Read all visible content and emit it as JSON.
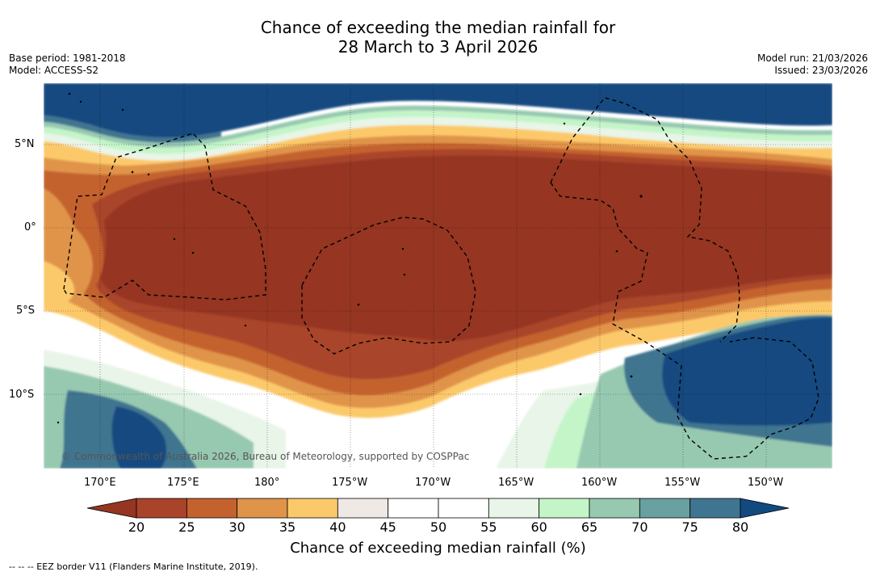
{
  "title": {
    "line1": "Chance of exceeding the median rainfall for",
    "line2": "28 March to 3 April 2026"
  },
  "meta": {
    "base_period": "Base period: 1981-2018",
    "model": "Model: ACCESS-S2",
    "model_run": "Model run: 21/03/2026",
    "issued": "Issued: 23/03/2026"
  },
  "map": {
    "region": "Equatorial central Pacific",
    "lon_range": [
      167,
      213
    ],
    "lat_range": [
      -14,
      8.5
    ],
    "copyright": "© Commonwealth of Australia 2026, Bureau of Meteorology, supported by COSPPac"
  },
  "axes": {
    "lat_labels": [
      "5°N",
      "0°",
      "5°S",
      "10°S"
    ],
    "lat_values": [
      5,
      0,
      -5,
      -10
    ],
    "lon_labels": [
      "170°E",
      "175°E",
      "180°",
      "175°W",
      "170°W",
      "165°W",
      "160°W",
      "155°W",
      "150°W"
    ],
    "lon_values": [
      170,
      175,
      180,
      185,
      190,
      195,
      200,
      205,
      210
    ]
  },
  "colorbar": {
    "title": "Chance of exceeding median rainfall (%)",
    "ticks": [
      "20",
      "25",
      "30",
      "35",
      "40",
      "45",
      "50",
      "55",
      "60",
      "65",
      "70",
      "75",
      "80"
    ],
    "under_color": "#953522",
    "over_color": "#124a80",
    "colors": [
      "#a9442a",
      "#c4622f",
      "#e0944a",
      "#fcc96a",
      "#efe9e5",
      "#ffffff",
      "#ffffff",
      "#e8f5e8",
      "#c4f5c8",
      "#97c9b1",
      "#69a0a1",
      "#3f7590"
    ]
  },
  "footnote": "--  --  -- EEZ border V11 (Flanders Marine Institute, 2019)."
}
